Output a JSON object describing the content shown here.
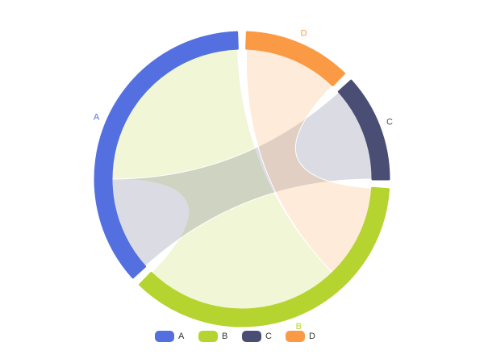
{
  "chart_data": {
    "type": "chord",
    "nodes": [
      {
        "name": "A",
        "color": "#5470e0"
      },
      {
        "name": "B",
        "color": "#b5d430"
      },
      {
        "name": "C",
        "color": "#4a4e74"
      },
      {
        "name": "D",
        "color": "#fa9a45"
      }
    ],
    "links": [
      {
        "source": "A",
        "target": "B",
        "value": 88
      },
      {
        "source": "A",
        "target": "C",
        "value": 42
      },
      {
        "source": "B",
        "target": "D",
        "value": 42
      }
    ],
    "legend": "bottom"
  }
}
